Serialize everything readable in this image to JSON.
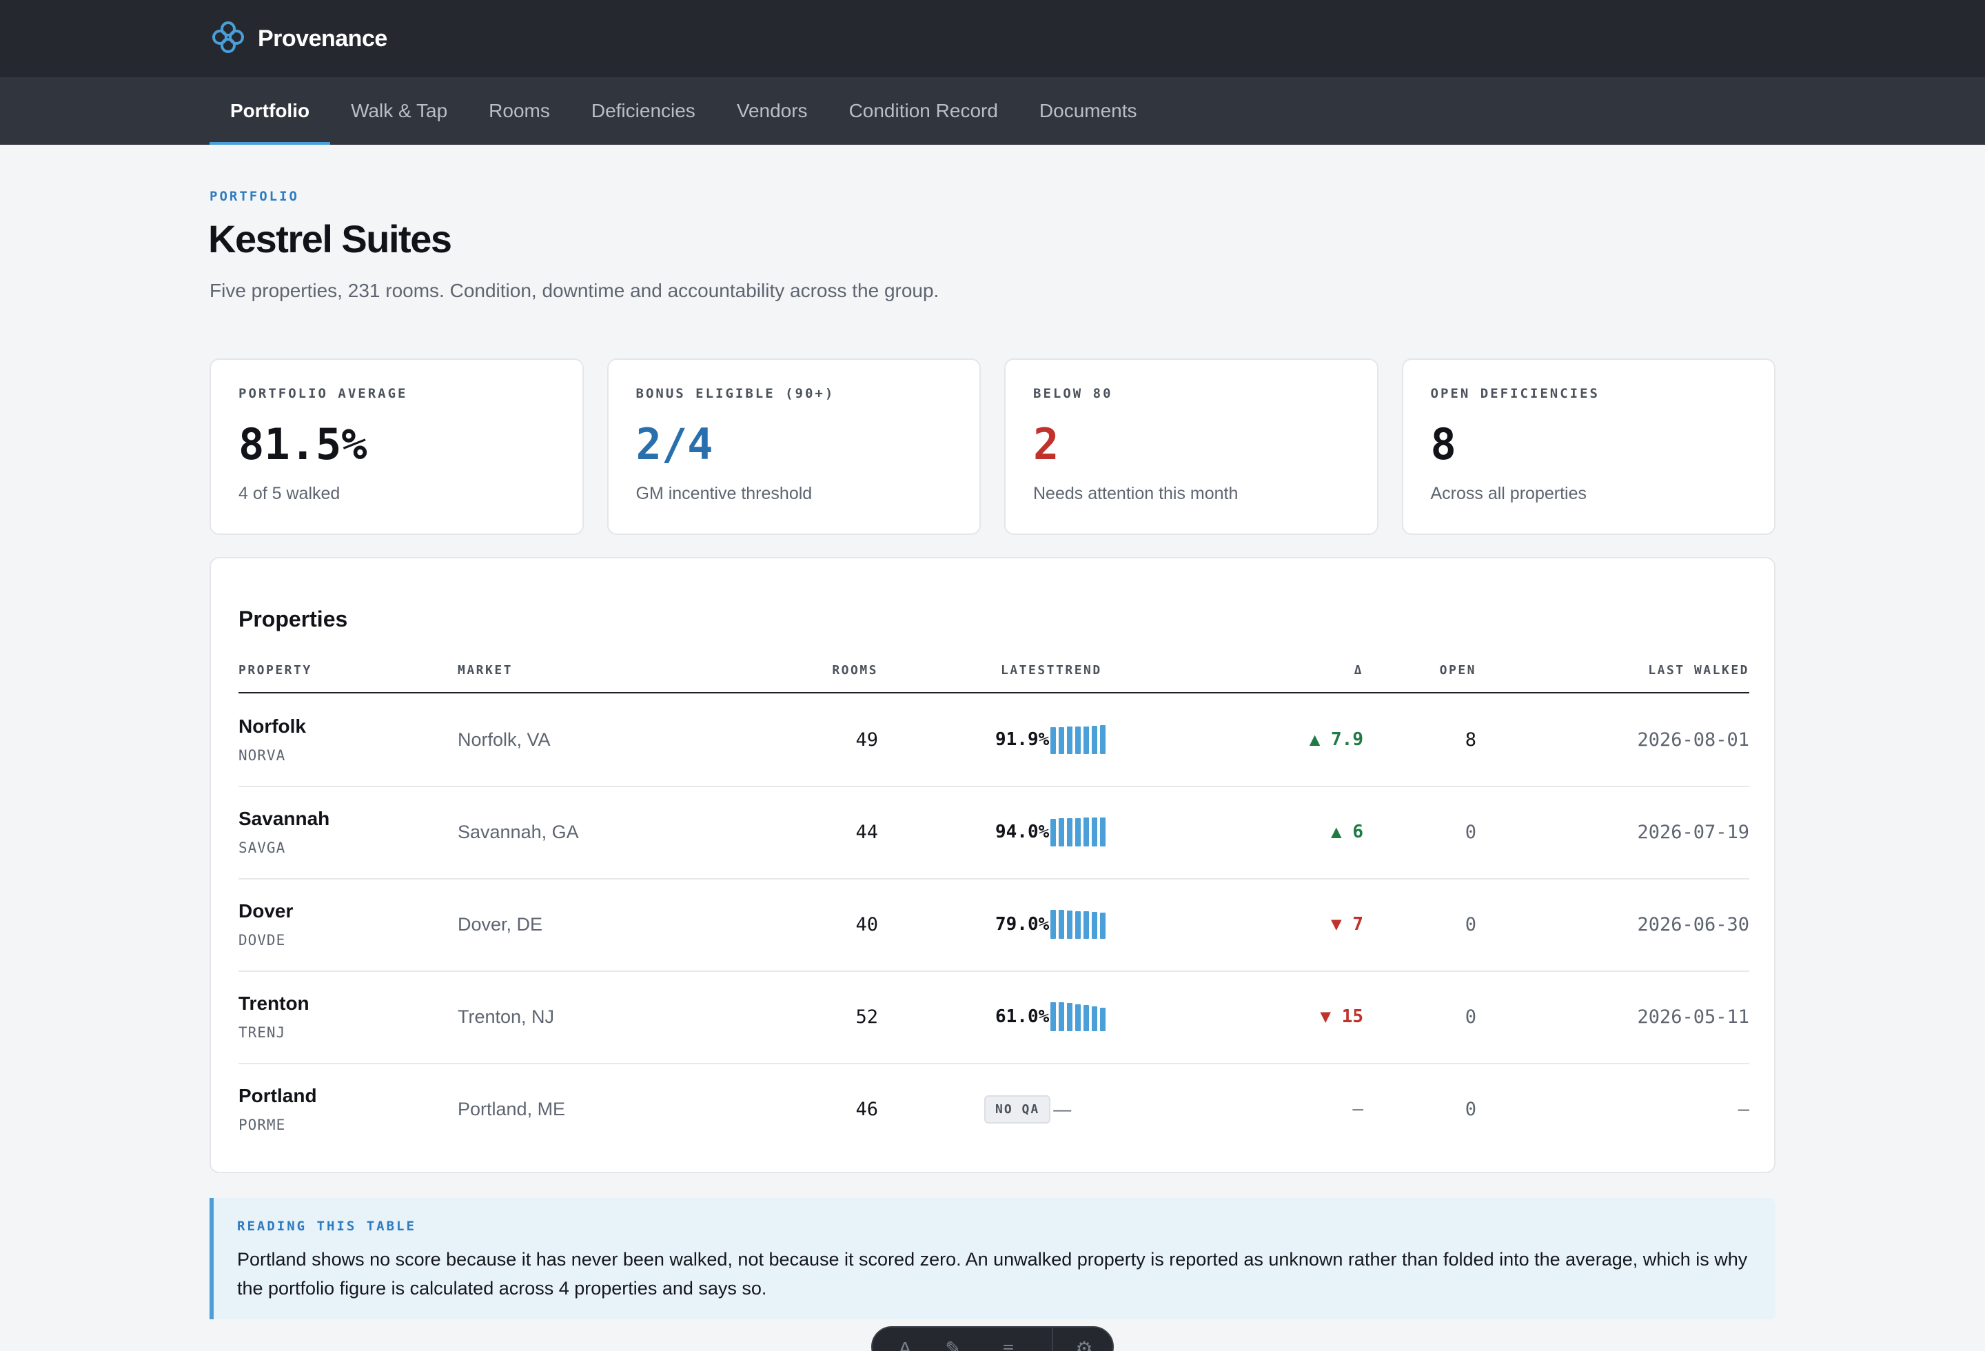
{
  "app": {
    "name": "Provenance"
  },
  "nav": [
    {
      "label": "Portfolio",
      "active": true
    },
    {
      "label": "Walk & Tap"
    },
    {
      "label": "Rooms"
    },
    {
      "label": "Deficiencies"
    },
    {
      "label": "Vendors"
    },
    {
      "label": "Condition Record"
    },
    {
      "label": "Documents"
    }
  ],
  "header": {
    "eyebrow": "PORTFOLIO",
    "title": "Kestrel Suites",
    "subtitle": "Five properties, 231 rooms. Condition, downtime and accountability across the group."
  },
  "stats": [
    {
      "label": "PORTFOLIO AVERAGE",
      "value": "81.5%",
      "note": "4 of 5 walked",
      "color": "#111318"
    },
    {
      "label": "BONUS ELIGIBLE (90+)",
      "value": "2/4",
      "note": "GM incentive threshold",
      "color": "#2a6fad"
    },
    {
      "label": "BELOW 80",
      "value": "2",
      "note": "Needs attention this month",
      "color": "#c0322b"
    },
    {
      "label": "OPEN DEFICIENCIES",
      "value": "8",
      "note": "Across all properties",
      "color": "#111318"
    }
  ],
  "table": {
    "title": "Properties",
    "columns": {
      "property": "PROPERTY",
      "market": "MARKET",
      "rooms": "ROOMS",
      "latest_trend": "LATESTTREND",
      "delta": "Δ",
      "open": "OPEN",
      "last_walked": "LAST WALKED"
    },
    "rows": [
      {
        "name": "Norfolk",
        "code": "NORVA",
        "market": "Norfolk, VA",
        "rooms": "49",
        "latest": "91.9%",
        "trend": [
          0.92,
          0.93,
          0.95,
          0.95,
          0.96,
          0.97,
          1.0
        ],
        "delta": "▲ 7.9",
        "delta_dir": "up",
        "open": "8",
        "last_walked": "2026-08-01"
      },
      {
        "name": "Savannah",
        "code": "SAVGA",
        "market": "Savannah, GA",
        "rooms": "44",
        "latest": "94.0%",
        "trend": [
          0.95,
          0.97,
          0.98,
          0.98,
          0.99,
          1.0,
          1.0
        ],
        "delta": "▲ 6",
        "delta_dir": "up",
        "open": "0",
        "last_walked": "2026-07-19"
      },
      {
        "name": "Dover",
        "code": "DOVDE",
        "market": "Dover, DE",
        "rooms": "40",
        "latest": "79.0%",
        "trend": [
          1.0,
          1.0,
          0.98,
          0.96,
          0.95,
          0.93,
          0.9
        ],
        "delta": "▼ 7",
        "delta_dir": "down",
        "open": "0",
        "last_walked": "2026-06-30"
      },
      {
        "name": "Trenton",
        "code": "TRENJ",
        "market": "Trenton, NJ",
        "rooms": "52",
        "latest": "61.0%",
        "trend": [
          1.0,
          1.0,
          0.97,
          0.93,
          0.9,
          0.85,
          0.8
        ],
        "delta": "▼ 15",
        "delta_dir": "down",
        "open": "0",
        "last_walked": "2026-05-11"
      },
      {
        "name": "Portland",
        "code": "PORME",
        "market": "Portland, ME",
        "rooms": "46",
        "latest": null,
        "no_qa": "NO QA",
        "trend_empty": "—",
        "trend": [],
        "delta": "—",
        "delta_dir": "none",
        "open": "0",
        "last_walked": "—"
      }
    ]
  },
  "note": {
    "label": "READING THIS TABLE",
    "body": "Portland shows no score because it has never been walked, not because it scored zero. An unwalked property is reported as unknown rather than folded into the average, which is why the portfolio figure is calculated across 4 properties and says so."
  },
  "colors": {
    "accent": "#4a9fd8",
    "up": "#1f7a44",
    "down": "#c0322b",
    "nav_bg": "#25282e"
  },
  "icons": {
    "brand": "brand-logo-icon",
    "toolbar": [
      "text-tool-icon",
      "brush-tool-icon",
      "menu-icon",
      "gear-icon"
    ]
  }
}
